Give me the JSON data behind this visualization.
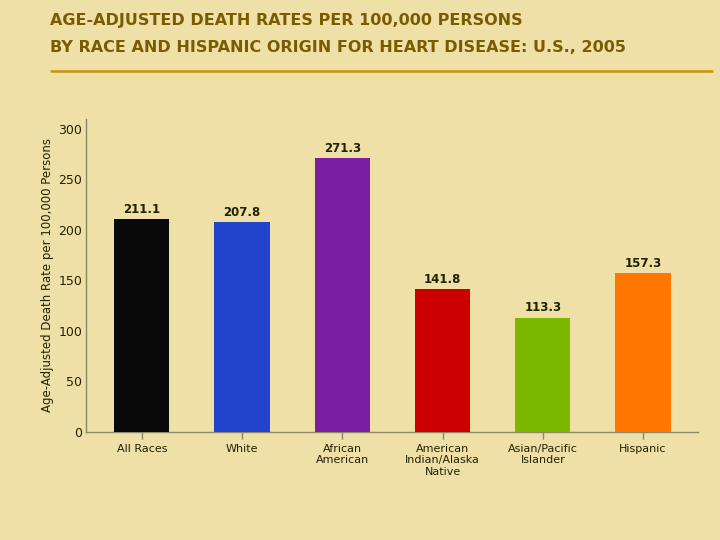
{
  "title_line1": "AGE-ADJUSTED DEATH RATES PER 100,000 PERSONS",
  "title_line2": "BY RACE AND HISPANIC ORIGIN FOR HEART DISEASE: U.S., 2005",
  "categories": [
    "All Races",
    "White",
    "African\nAmerican",
    "American\nIndian/Alaska\nNative",
    "Asian/Pacific\nIslander",
    "Hispanic"
  ],
  "values": [
    211.1,
    207.8,
    271.3,
    141.8,
    113.3,
    157.3
  ],
  "bar_colors": [
    "#0a0a0a",
    "#2244CC",
    "#7B1FA2",
    "#CC0000",
    "#7CB800",
    "#FF7700"
  ],
  "ylabel": "Age-Adjusted Death Rate per 100,000 Persons",
  "ylim": [
    0,
    310
  ],
  "yticks": [
    0,
    50,
    100,
    150,
    200,
    250,
    300
  ],
  "background_color": "#EFE0A8",
  "title_color": "#7A5C00",
  "tick_label_color": "#222200",
  "value_label_color": "#222200",
  "title_fontsize": 11.5,
  "ylabel_fontsize": 8.5,
  "bar_width": 0.55,
  "underline_color": "#C8920A",
  "spine_color": "#888866"
}
